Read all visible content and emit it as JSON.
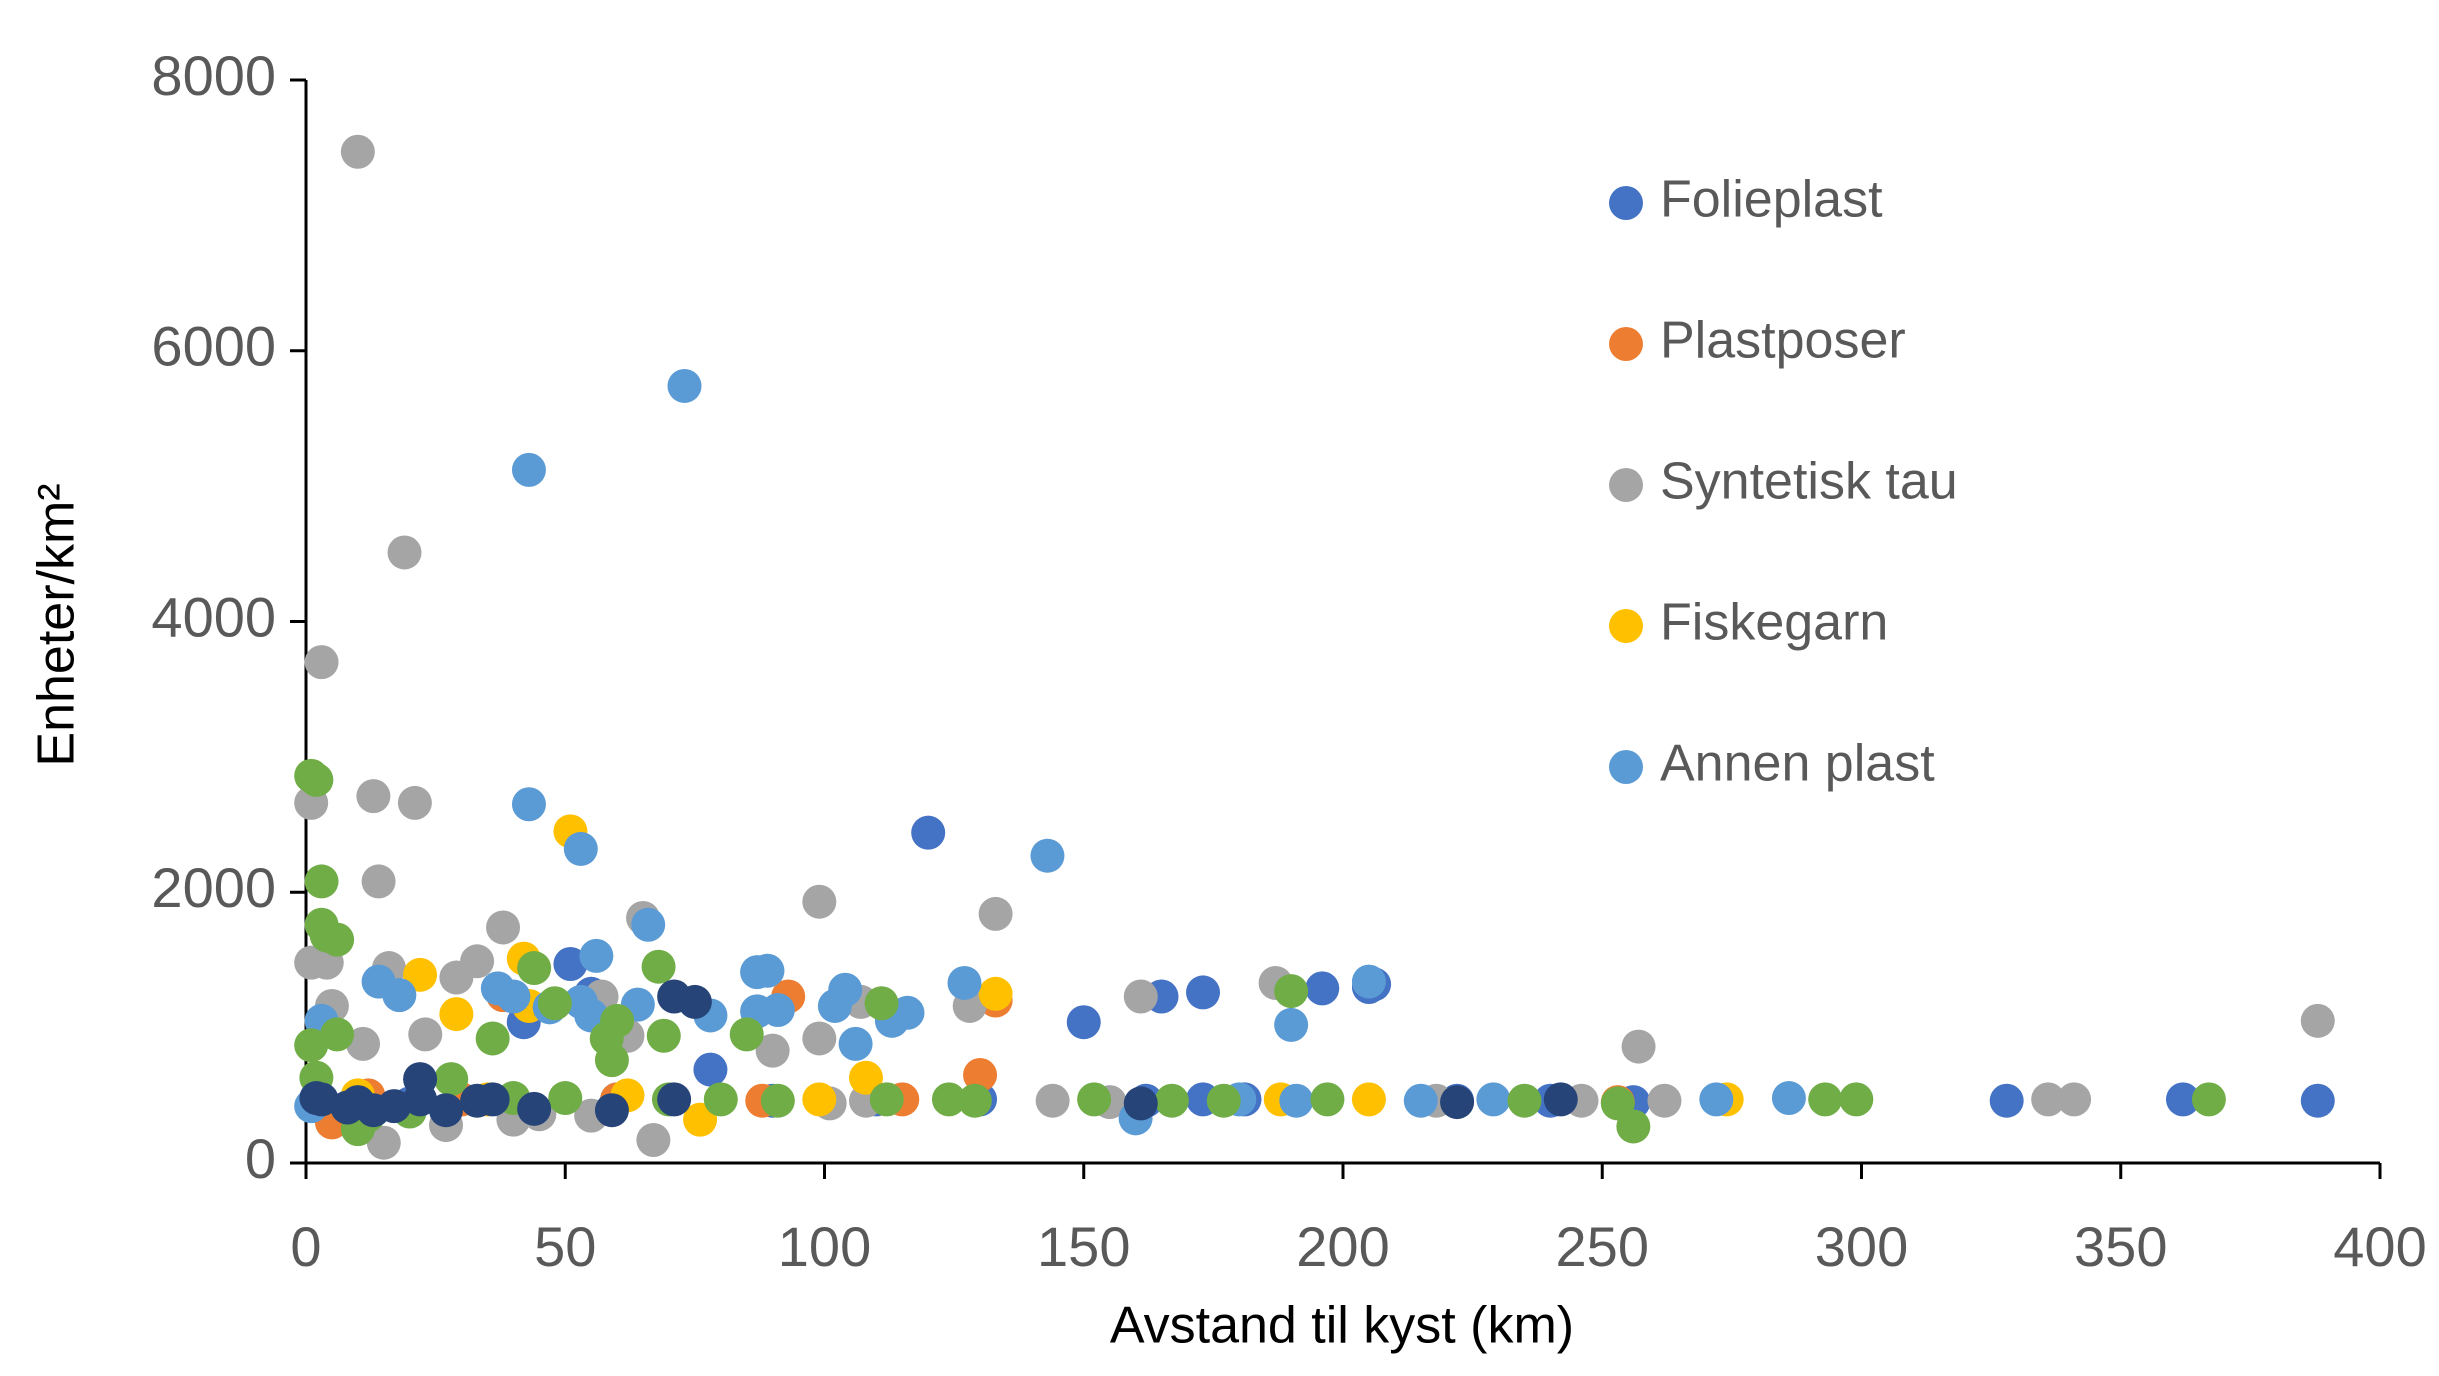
{
  "chart_data": {
    "type": "scatter",
    "xlabel": "Avstand til kyst (km)",
    "ylabel": "Enheter/km²",
    "xlim": [
      0,
      400
    ],
    "xticks": [
      0,
      50,
      100,
      150,
      200,
      250,
      300,
      350,
      400
    ],
    "ylim": [
      0,
      8000
    ],
    "yticks": [
      0,
      2000,
      4000,
      6000,
      8000
    ],
    "legend": "upper-right",
    "series": [
      {
        "name": "Folieplast",
        "color": "#4472c4",
        "x": [
          120,
          150,
          165,
          173,
          196,
          206,
          205,
          328,
          362,
          388,
          51,
          42,
          55,
          162,
          173,
          181,
          78,
          2,
          10,
          20,
          60,
          90,
          110,
          130,
          222,
          240,
          256
        ],
        "values": [
          2440,
          1040,
          1230,
          1260,
          1290,
          1320,
          1300,
          460,
          470,
          460,
          1470,
          1040,
          1250,
          460,
          470,
          470,
          690,
          420,
          470,
          440,
          470,
          460,
          470,
          470,
          460,
          460,
          450
        ]
      },
      {
        "name": "Plastposer",
        "color": "#ed7d31",
        "x": [
          93,
          130,
          133,
          38,
          5,
          12,
          253,
          30,
          60,
          88,
          115
        ],
        "values": [
          1230,
          650,
          1200,
          1240,
          300,
          500,
          450,
          470,
          470,
          460,
          470
        ]
      },
      {
        "name": "Syntetisk tau",
        "color": "#a5a5a5",
        "x": [
          10,
          19,
          3,
          1,
          13,
          21,
          14,
          38,
          65,
          99,
          133,
          161,
          187,
          257,
          388,
          1,
          4,
          5,
          11,
          16,
          23,
          29,
          33,
          57,
          62,
          90,
          99,
          107,
          128,
          15,
          27,
          40,
          45,
          55,
          67,
          144,
          155,
          218,
          246,
          262,
          336,
          341,
          108,
          101
        ],
        "values": [
          7470,
          4510,
          3700,
          2660,
          2710,
          2660,
          2080,
          1740,
          1810,
          1930,
          1840,
          1230,
          1330,
          860,
          1050,
          1480,
          1480,
          1160,
          880,
          1440,
          950,
          1370,
          1490,
          1230,
          940,
          830,
          920,
          1190,
          1160,
          150,
          280,
          320,
          360,
          350,
          170,
          460,
          450,
          460,
          460,
          460,
          470,
          470,
          460,
          440
        ]
      },
      {
        "name": "Fiskegarn",
        "color": "#ffc000",
        "x": [
          51,
          42,
          22,
          29,
          133,
          43,
          108,
          76,
          99,
          188,
          205,
          274,
          62,
          10,
          35
        ],
        "values": [
          2450,
          1510,
          1390,
          1100,
          1250,
          1160,
          630,
          320,
          470,
          470,
          470,
          470,
          500,
          500,
          470
        ]
      },
      {
        "name": "Annen plast",
        "color": "#5b9bd5",
        "x": [
          73,
          43,
          43,
          53,
          143,
          66,
          56,
          37,
          40,
          18,
          14,
          87,
          89,
          104,
          102,
          106,
          113,
          116,
          127,
          190,
          205,
          64,
          53,
          78,
          87,
          91,
          3,
          1,
          160,
          215,
          229,
          272,
          286,
          180,
          191,
          47,
          55
        ],
        "values": [
          5740,
          5120,
          2650,
          2320,
          2270,
          1760,
          1530,
          1290,
          1230,
          1240,
          1340,
          1410,
          1420,
          1280,
          1160,
          880,
          1050,
          1110,
          1330,
          1020,
          1340,
          1170,
          1190,
          1090,
          1120,
          1130,
          1050,
          420,
          330,
          460,
          470,
          470,
          480,
          470,
          460,
          1150,
          1090
        ]
      },
      {
        "color": "#70ad47",
        "x": [
          1,
          2,
          3,
          3,
          4,
          6,
          1,
          6,
          2,
          10,
          12,
          20,
          28,
          36,
          44,
          48,
          58,
          60,
          59,
          68,
          69,
          85,
          111,
          190,
          256,
          253,
          91,
          112,
          124,
          129,
          152,
          167,
          177,
          197,
          235,
          293,
          299,
          367,
          40,
          50,
          70,
          80
        ],
        "values": [
          2860,
          2830,
          2080,
          1760,
          1680,
          1650,
          870,
          950,
          630,
          250,
          350,
          380,
          620,
          920,
          1440,
          1180,
          920,
          1050,
          760,
          1450,
          940,
          950,
          1180,
          1270,
          270,
          440,
          460,
          470,
          470,
          460,
          470,
          460,
          460,
          470,
          460,
          470,
          470,
          470,
          480,
          480,
          470,
          470
        ]
      },
      {
        "color": "#264478",
        "x": [
          3,
          10,
          13,
          17,
          22,
          22,
          27,
          33,
          36,
          44,
          59,
          71,
          71,
          75,
          161,
          222,
          242,
          2,
          8
        ],
        "values": [
          470,
          450,
          390,
          420,
          620,
          470,
          390,
          460,
          470,
          400,
          390,
          470,
          1230,
          1190,
          440,
          450,
          470,
          480,
          410
        ]
      }
    ]
  }
}
